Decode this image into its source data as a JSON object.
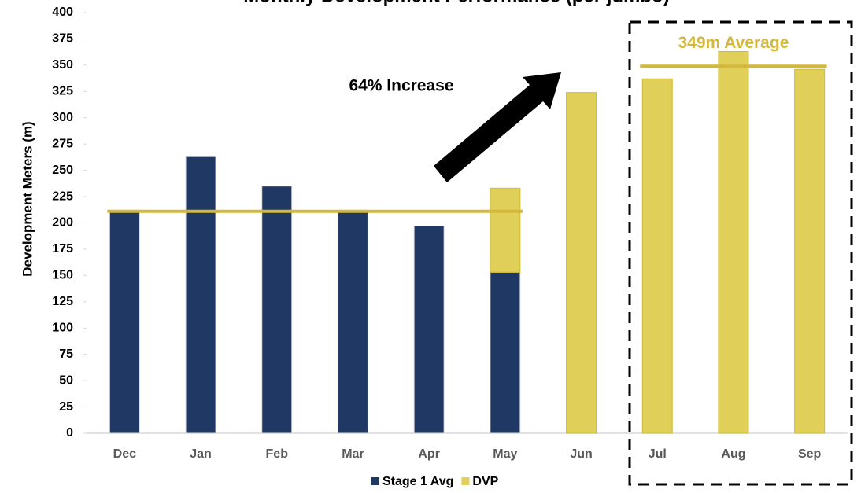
{
  "chart_data": {
    "type": "bar",
    "stacked": true,
    "title": "Monthly Development Performance (per jumbo)",
    "y_label": "Development Meters (m)",
    "annotation": "64% Increase",
    "categories": [
      "Dec",
      "Jan",
      "Feb",
      "Mar",
      "Apr",
      "May",
      "Jun",
      "Jul",
      "Aug",
      "Sep"
    ],
    "series": [
      {
        "name": "Stage 1 Avg",
        "color": "#1f3864",
        "values": [
          212,
          263,
          235,
          211,
          197,
          153,
          null,
          null,
          null,
          null
        ]
      },
      {
        "name": "DVP",
        "color": "#e0d05a",
        "values": [
          null,
          null,
          null,
          null,
          null,
          80,
          324,
          337,
          363,
          346
        ]
      }
    ],
    "reference_lines": [
      {
        "value": 211,
        "from": 0,
        "to": 5,
        "color": "#d4b83c"
      },
      {
        "value": 349,
        "from": 7,
        "to": 9,
        "color": "#d4b83c",
        "label": "349m Average"
      }
    ],
    "ylim": [
      0,
      400
    ],
    "yticks": [
      0,
      25,
      50,
      75,
      100,
      125,
      150,
      175,
      200,
      225,
      250,
      275,
      300,
      325,
      350,
      375,
      400
    ],
    "legend": "bottom"
  }
}
